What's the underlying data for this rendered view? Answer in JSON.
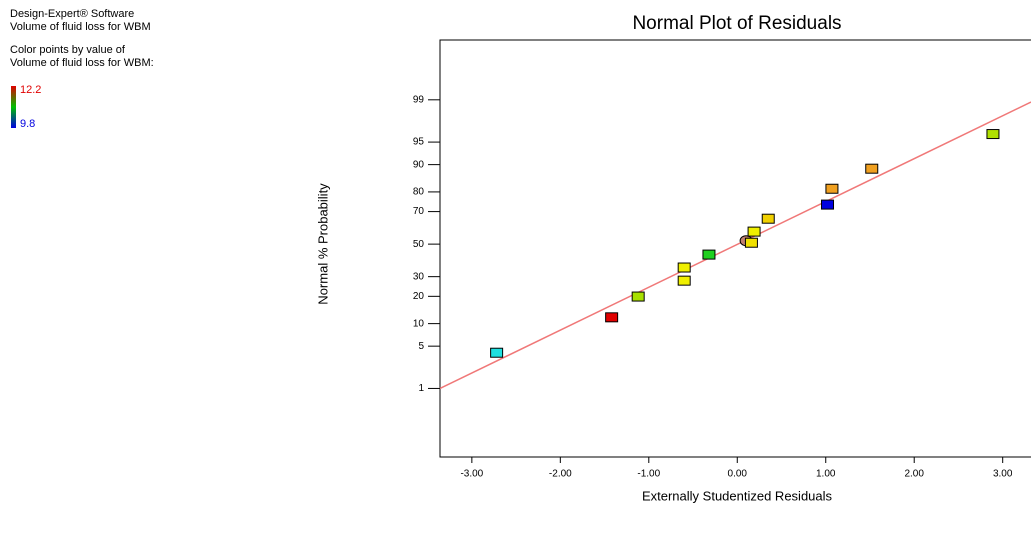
{
  "chart_data": {
    "type": "scatter",
    "title": "Normal Plot of Residuals",
    "xlabel": "Externally Studentized Residuals",
    "ylabel": "Normal % Probability",
    "software": "Design-Expert® Software",
    "response": "Volume of fluid loss for WBM",
    "color_note": "Color points by value of",
    "color_response": "Volume of fluid loss for WBM:",
    "color_scale": {
      "max": 12.2,
      "min": 9.8,
      "colors": [
        "#e00000",
        "#00c000",
        "#0000e0"
      ]
    },
    "xlim": [
      -3.36,
      3.32
    ],
    "ylim": [
      0.03,
      99.95
    ],
    "yscale": "probit",
    "xticks": [
      {
        "value": -3,
        "label": "-3.00"
      },
      {
        "value": -2,
        "label": "-2.00"
      },
      {
        "value": -1,
        "label": "-1.00"
      },
      {
        "value": 0,
        "label": "0.00"
      },
      {
        "value": 1,
        "label": "1.00"
      },
      {
        "value": 2,
        "label": "2.00"
      },
      {
        "value": 3,
        "label": "3.00"
      }
    ],
    "yticks": [
      1,
      5,
      10,
      20,
      30,
      50,
      70,
      80,
      90,
      95,
      99
    ],
    "fit_line": {
      "color": "#f07878",
      "x": [
        -3.36,
        3.32
      ],
      "y": [
        1,
        98.9
      ]
    },
    "series": [
      {
        "x": [
          -2.72,
          -1.42,
          -1.12,
          -0.6,
          -0.6,
          -0.32,
          0.1,
          0.16,
          0.19,
          0.35,
          1.02,
          1.07,
          1.52,
          2.89
        ],
        "values": [
          4.0,
          11.9,
          19.9,
          27.8,
          35.3,
          43.3,
          52.2,
          50.9,
          58.0,
          65.9,
          73.8,
          81.4,
          88.8,
          96.2
        ],
        "colors": [
          "#20e0e0",
          "#e00000",
          "#a8e000",
          "#f0f000",
          "#f0f000",
          "#20d020",
          "#c08070",
          "#f0e000",
          "#f0f000",
          "#f0d000",
          "#0000e0",
          "#f0a020",
          "#f0a020",
          "#b0e000"
        ],
        "shapes": [
          "square",
          "square",
          "square",
          "square",
          "square",
          "square",
          "circle",
          "square",
          "square",
          "square",
          "square",
          "square",
          "square",
          "square"
        ]
      }
    ]
  }
}
